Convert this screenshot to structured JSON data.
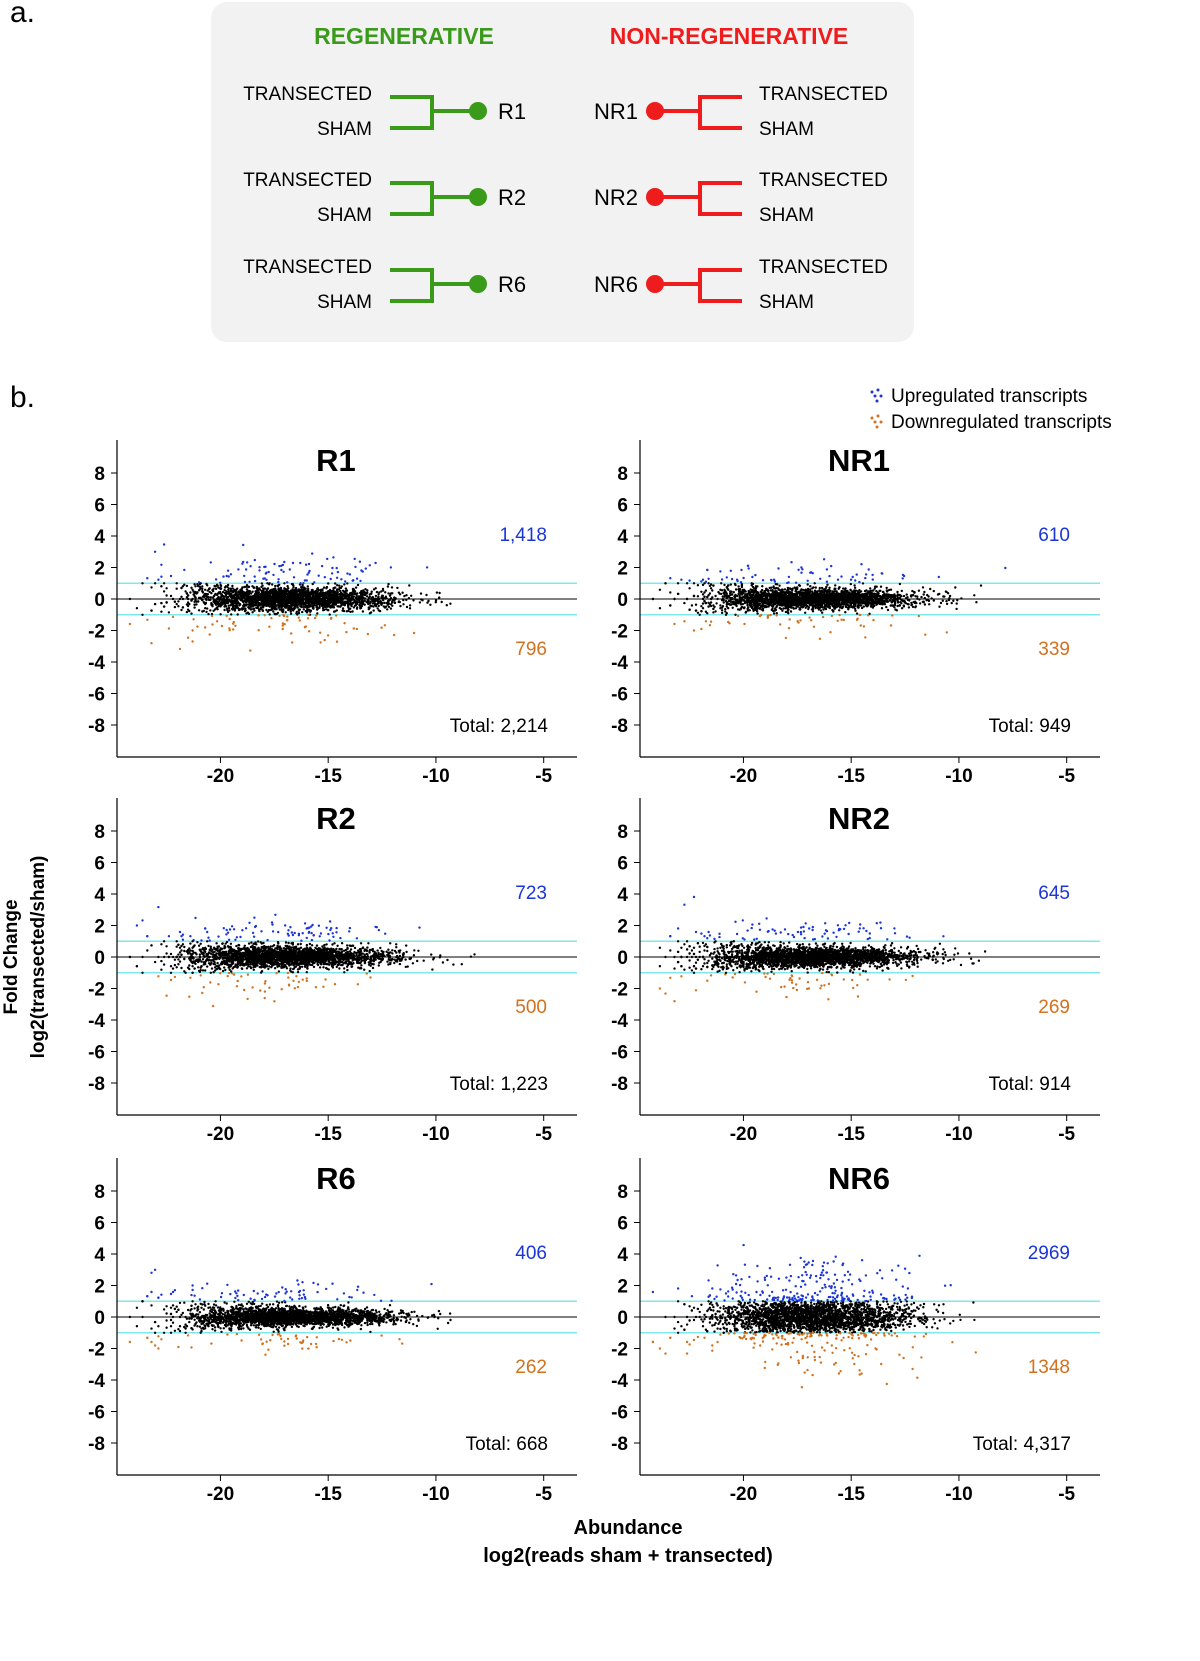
{
  "panel_a": {
    "label": "a.",
    "groups": [
      {
        "title": "REGENERATIVE",
        "color": "#3a9a1a",
        "samples": [
          {
            "name": "R1",
            "top": "TRANSECTED",
            "bottom": "SHAM"
          },
          {
            "name": "R2",
            "top": "TRANSECTED",
            "bottom": "SHAM"
          },
          {
            "name": "R6",
            "top": "TRANSECTED",
            "bottom": "SHAM"
          }
        ]
      },
      {
        "title": "NON-REGENERATIVE",
        "color": "#ee1c1c",
        "samples": [
          {
            "name": "NR1",
            "top": "TRANSECTED",
            "bottom": "SHAM"
          },
          {
            "name": "NR2",
            "top": "TRANSECTED",
            "bottom": "SHAM"
          },
          {
            "name": "NR6",
            "top": "TRANSECTED",
            "bottom": "SHAM"
          }
        ]
      }
    ]
  },
  "panel_b": {
    "label": "b.",
    "legend": [
      {
        "label": "Upregulated transcripts",
        "color": "#1a35d8"
      },
      {
        "label": "Downregulated transcripts",
        "color": "#d2711e"
      }
    ],
    "ylabel_1": "Fold Change",
    "ylabel_2": "log2(transected/sham)",
    "xlabel_1": "Abundance",
    "xlabel_2": "log2(reads sham + transected)"
  },
  "chart_data": [
    {
      "type": "scatter",
      "title": "R1",
      "up_count": "1,418",
      "down_count": "796",
      "total": "Total: 2,214",
      "spread": 1.0
    },
    {
      "type": "scatter",
      "title": "NR1",
      "up_count": "610",
      "down_count": "339",
      "total": "Total: 949",
      "spread": 0.8
    },
    {
      "type": "scatter",
      "title": "R2",
      "up_count": "723",
      "down_count": "500",
      "total": "Total: 1,223",
      "spread": 0.85
    },
    {
      "type": "scatter",
      "title": "NR2",
      "up_count": "645",
      "down_count": "269",
      "total": "Total: 914",
      "spread": 0.82
    },
    {
      "type": "scatter",
      "title": "R6",
      "up_count": "406",
      "down_count": "262",
      "total": "Total: 668",
      "spread": 0.72
    },
    {
      "type": "scatter",
      "title": "NR6",
      "up_count": "2969",
      "down_count": "1348",
      "total": "Total: 4,317",
      "spread": 1.5
    }
  ],
  "axes": {
    "xlim": [
      -24.8,
      -3.4
    ],
    "ylim": [
      -10,
      10
    ],
    "xticks": [
      "-20",
      "-15",
      "-10",
      "-5"
    ],
    "yticks": [
      "8",
      "6",
      "4",
      "2",
      "0",
      "-2",
      "-4",
      "-6",
      "-8"
    ],
    "threshold_lines": [
      1,
      -1
    ],
    "threshold_color": "#7fe8ee",
    "grid": false
  }
}
